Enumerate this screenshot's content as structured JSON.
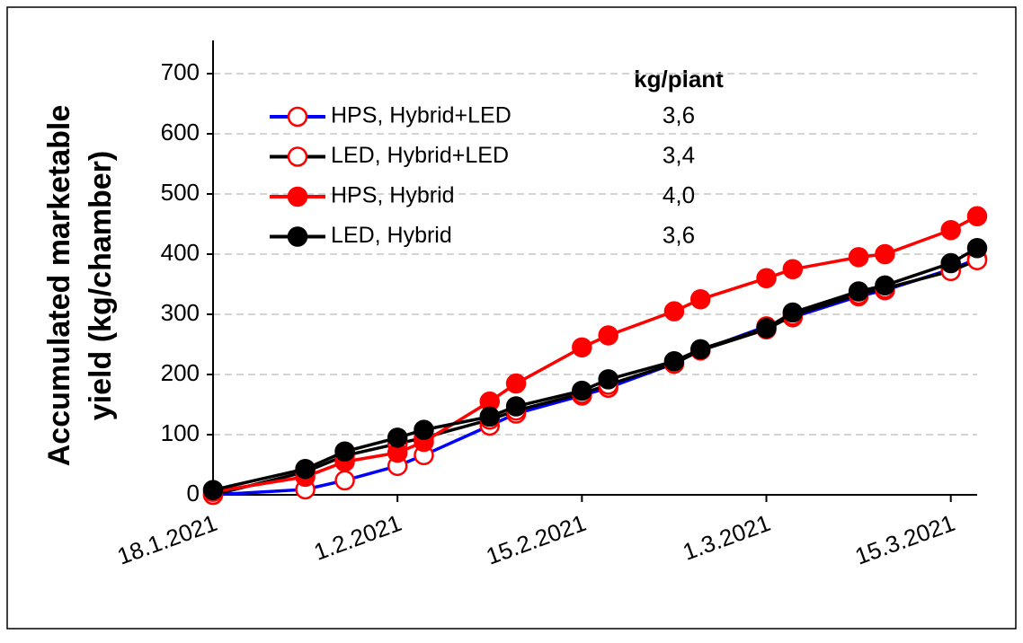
{
  "chart_data": {
    "type": "line",
    "ylabel": [
      "Accumulated marketable",
      "yield (kg/chamber)"
    ],
    "annotation_title": "kg/plant",
    "x": [
      "2021-01-18",
      "2021-01-25",
      "2021-01-28",
      "2021-02-01",
      "2021-02-03",
      "2021-02-08",
      "2021-02-10",
      "2021-02-15",
      "2021-02-17",
      "2021-02-22",
      "2021-02-24",
      "2021-03-01",
      "2021-03-03",
      "2021-03-08",
      "2021-03-10",
      "2021-03-15",
      "2021-03-17"
    ],
    "xlim": [
      "2021-01-18",
      "2021-03-17"
    ],
    "xticks": [
      {
        "value": "2021-01-18",
        "label": "18.1.2021"
      },
      {
        "value": "2021-02-01",
        "label": "1.2.2021"
      },
      {
        "value": "2021-02-15",
        "label": "15.2.2021"
      },
      {
        "value": "2021-03-01",
        "label": "1.3.2021"
      },
      {
        "value": "2021-03-15",
        "label": "15.3.2021"
      }
    ],
    "ylim": [
      0,
      700
    ],
    "yticks": [
      0,
      100,
      200,
      300,
      400,
      500,
      600,
      700
    ],
    "grid": true,
    "series": [
      {
        "name": "HPS, Hybrid+LED",
        "color": "#0000ff",
        "marker_color": "#ff0000",
        "marker": "open",
        "annotation": "3,6",
        "values": [
          0,
          9,
          24,
          48,
          66,
          115,
          135,
          165,
          178,
          218,
          240,
          280,
          295,
          330,
          340,
          375,
          392
        ]
      },
      {
        "name": "LED, Hybrid+LED",
        "color": "#000000",
        "marker_color": "#ff0000",
        "marker": "open",
        "annotation": "3,4",
        "values": [
          0,
          38,
          65,
          85,
          95,
          125,
          140,
          168,
          183,
          218,
          240,
          275,
          298,
          333,
          343,
          372,
          390
        ]
      },
      {
        "name": "HPS, Hybrid",
        "color": "#ff0000",
        "marker_color": "#ff0000",
        "marker": "filled",
        "annotation": "4,0",
        "values": [
          5,
          30,
          55,
          70,
          88,
          155,
          185,
          245,
          265,
          305,
          325,
          360,
          375,
          395,
          400,
          440,
          463
        ]
      },
      {
        "name": "LED, Hybrid",
        "color": "#000000",
        "marker_color": "#000000",
        "marker": "filled",
        "annotation": "3,6",
        "values": [
          8,
          43,
          72,
          95,
          108,
          130,
          147,
          173,
          192,
          222,
          242,
          277,
          303,
          338,
          348,
          385,
          410
        ]
      }
    ]
  }
}
